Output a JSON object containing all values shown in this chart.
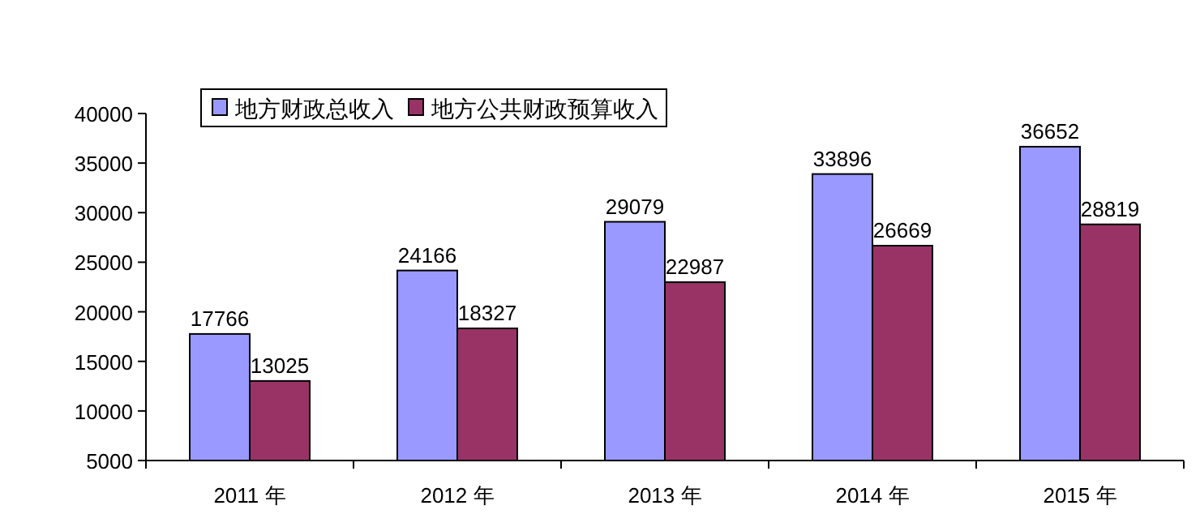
{
  "chart_data": {
    "type": "bar",
    "categories": [
      "2011 年",
      "2012 年",
      "2013 年",
      "2014 年",
      "2015 年"
    ],
    "series": [
      {
        "name": "地方财政总收入",
        "color": "#9999ff",
        "values": [
          17766,
          24166,
          29079,
          33896,
          36652
        ]
      },
      {
        "name": "地方公共财政预算收入",
        "color": "#993366",
        "values": [
          13025,
          18327,
          22987,
          26669,
          28819
        ]
      }
    ],
    "ylim": [
      5000,
      40000
    ],
    "yticks": [
      5000,
      10000,
      15000,
      20000,
      25000,
      30000,
      35000,
      40000
    ],
    "data_labels": true,
    "grid": false,
    "legend": "top"
  }
}
